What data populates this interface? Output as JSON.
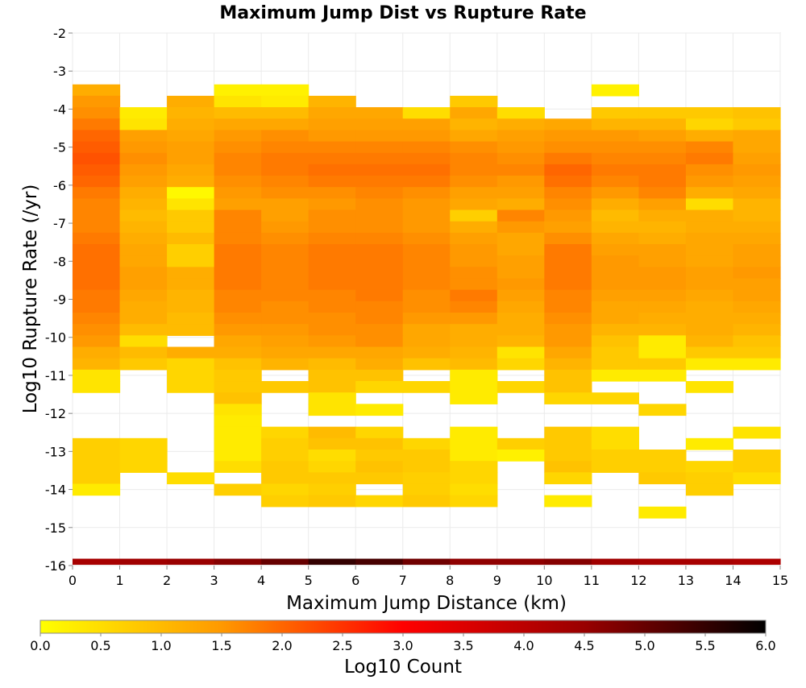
{
  "chart_data": {
    "type": "heatmap",
    "title": "Maximum Jump Dist vs Rupture Rate",
    "xlabel": "Maximum Jump Distance (km)",
    "ylabel": "Log10 Rupture Rate (/yr)",
    "xlim": [
      0,
      15
    ],
    "ylim": [
      -16,
      -2
    ],
    "x_ticks": [
      "0",
      "1",
      "2",
      "3",
      "4",
      "5",
      "6",
      "7",
      "8",
      "9",
      "10",
      "11",
      "12",
      "13",
      "14",
      "15"
    ],
    "y_ticks": [
      "-2",
      "-3",
      "-4",
      "-5",
      "-6",
      "-7",
      "-8",
      "-9",
      "-10",
      "-11",
      "-12",
      "-13",
      "-14",
      "-15",
      "-16"
    ],
    "grid": true,
    "bin_width_x": 1,
    "bin_height_y": 0.3,
    "colorbar": {
      "label": "Log10 Count",
      "range": [
        0,
        6
      ],
      "ticks": [
        "0.0",
        "0.5",
        "1.0",
        "1.5",
        "2.0",
        "2.5",
        "3.0",
        "3.5",
        "4.0",
        "4.5",
        "5.0",
        "5.5",
        "6.0"
      ],
      "colors": [
        "#ffff00",
        "#ff9900",
        "#ff0000",
        "#990000",
        "#000000"
      ]
    },
    "cell_note": "Rows listed top (y=-3.5) to bottom (y=-15.8) in 0.3 steps; columns x=0..14 (1 km bins). null = no data. Values are Log10 Count.",
    "y_top": -3.5,
    "cells": [
      [
        1.2,
        null,
        null,
        0.2,
        0.2,
        null,
        null,
        null,
        null,
        null,
        null,
        0.2,
        null,
        null,
        null
      ],
      [
        1.5,
        null,
        1.2,
        0.4,
        0.3,
        1.1,
        null,
        null,
        0.8,
        null,
        null,
        null,
        null,
        null,
        null
      ],
      [
        1.6,
        0.3,
        1.1,
        1.0,
        1.0,
        1.3,
        1.3,
        0.5,
        1.3,
        0.5,
        null,
        0.8,
        0.8,
        0.8,
        0.9
      ],
      [
        1.8,
        0.4,
        1.2,
        1.3,
        1.3,
        1.4,
        1.4,
        1.4,
        1.1,
        1.2,
        1.3,
        1.1,
        1.1,
        0.6,
        0.8
      ],
      [
        2.0,
        1.4,
        1.3,
        1.5,
        1.6,
        1.5,
        1.5,
        1.5,
        1.3,
        1.4,
        1.5,
        1.5,
        1.4,
        1.2,
        1.3
      ],
      [
        2.1,
        1.5,
        1.4,
        1.6,
        1.7,
        1.7,
        1.7,
        1.7,
        1.6,
        1.5,
        1.6,
        1.6,
        1.6,
        1.7,
        1.3
      ],
      [
        2.2,
        1.6,
        1.4,
        1.7,
        1.8,
        1.8,
        1.8,
        1.8,
        1.7,
        1.6,
        1.8,
        1.7,
        1.7,
        1.8,
        1.4
      ],
      [
        2.1,
        1.5,
        1.3,
        1.7,
        1.8,
        1.9,
        1.9,
        1.9,
        1.7,
        1.7,
        2.0,
        1.8,
        1.8,
        1.6,
        1.5
      ],
      [
        2.0,
        1.4,
        1.2,
        1.6,
        1.7,
        1.8,
        1.8,
        1.8,
        1.6,
        1.5,
        1.9,
        1.7,
        1.8,
        1.5,
        1.4
      ],
      [
        1.8,
        1.2,
        0.1,
        1.5,
        1.6,
        1.6,
        1.7,
        1.6,
        1.4,
        1.4,
        1.7,
        1.5,
        1.7,
        1.2,
        1.3
      ],
      [
        1.7,
        1.1,
        0.4,
        1.4,
        1.4,
        1.5,
        1.6,
        1.5,
        1.3,
        1.2,
        1.6,
        1.2,
        1.4,
        0.5,
        1.1
      ],
      [
        1.7,
        1.0,
        0.8,
        1.7,
        1.4,
        1.6,
        1.6,
        1.5,
        0.7,
        1.7,
        1.5,
        1.0,
        1.2,
        1.2,
        1.1
      ],
      [
        1.7,
        1.1,
        0.8,
        1.7,
        1.5,
        1.6,
        1.6,
        1.5,
        1.2,
        1.5,
        1.4,
        1.1,
        1.1,
        1.2,
        1.2
      ],
      [
        1.8,
        1.2,
        1.0,
        1.7,
        1.6,
        1.7,
        1.7,
        1.6,
        1.4,
        1.3,
        1.6,
        1.3,
        1.2,
        1.3,
        1.3
      ],
      [
        1.9,
        1.3,
        0.7,
        1.8,
        1.7,
        1.8,
        1.8,
        1.7,
        1.5,
        1.3,
        1.8,
        1.4,
        1.4,
        1.3,
        1.4
      ],
      [
        1.9,
        1.3,
        0.7,
        1.8,
        1.7,
        1.8,
        1.8,
        1.7,
        1.5,
        1.4,
        1.8,
        1.5,
        1.4,
        1.3,
        1.4
      ],
      [
        1.9,
        1.4,
        1.2,
        1.8,
        1.7,
        1.8,
        1.8,
        1.7,
        1.6,
        1.4,
        1.8,
        1.5,
        1.5,
        1.4,
        1.5
      ],
      [
        1.9,
        1.4,
        1.2,
        1.8,
        1.7,
        1.8,
        1.8,
        1.7,
        1.6,
        1.5,
        1.8,
        1.5,
        1.5,
        1.4,
        1.4
      ],
      [
        1.8,
        1.3,
        1.1,
        1.7,
        1.7,
        1.7,
        1.8,
        1.6,
        1.8,
        1.4,
        1.7,
        1.4,
        1.4,
        1.3,
        1.4
      ],
      [
        1.8,
        1.2,
        1.1,
        1.7,
        1.6,
        1.7,
        1.7,
        1.6,
        1.7,
        1.3,
        1.7,
        1.3,
        1.3,
        1.2,
        1.3
      ],
      [
        1.7,
        1.2,
        1.0,
        1.6,
        1.6,
        1.6,
        1.7,
        1.5,
        1.5,
        1.2,
        1.6,
        1.3,
        1.2,
        1.2,
        1.2
      ],
      [
        1.6,
        1.0,
        1.0,
        1.5,
        1.5,
        1.6,
        1.6,
        1.3,
        1.2,
        1.2,
        1.5,
        1.1,
        1.1,
        1.2,
        1.1
      ],
      [
        1.5,
        0.5,
        null,
        1.3,
        1.4,
        1.5,
        1.6,
        1.3,
        1.2,
        1.1,
        1.5,
        0.9,
        0.3,
        1.1,
        0.9
      ],
      [
        1.2,
        1.0,
        1.2,
        1.2,
        1.3,
        1.3,
        1.3,
        1.2,
        1.1,
        0.4,
        1.3,
        0.8,
        0.3,
        0.8,
        0.8
      ],
      [
        1.1,
        0.8,
        0.6,
        0.9,
        1.1,
        1.0,
        1.2,
        0.9,
        1.0,
        0.6,
        1.1,
        0.8,
        0.8,
        0.3,
        0.3
      ],
      [
        0.4,
        null,
        0.6,
        0.8,
        null,
        0.9,
        0.9,
        null,
        0.3,
        null,
        0.9,
        0.3,
        0.3,
        null,
        null
      ],
      [
        0.4,
        null,
        0.6,
        0.8,
        0.8,
        0.9,
        0.6,
        0.6,
        0.3,
        0.6,
        0.9,
        null,
        null,
        0.4,
        null
      ],
      [
        null,
        null,
        null,
        0.9,
        null,
        0.4,
        null,
        null,
        0.3,
        null,
        0.6,
        0.6,
        null,
        null,
        null
      ],
      [
        null,
        null,
        null,
        0.4,
        null,
        0.4,
        0.3,
        null,
        null,
        null,
        null,
        null,
        0.6,
        null,
        null
      ],
      [
        null,
        null,
        null,
        0.3,
        null,
        null,
        null,
        null,
        null,
        null,
        null,
        null,
        null,
        null,
        null
      ],
      [
        null,
        null,
        null,
        0.3,
        0.6,
        1.0,
        0.6,
        null,
        0.3,
        null,
        0.8,
        0.5,
        null,
        null,
        0.4
      ],
      [
        0.7,
        0.6,
        null,
        0.3,
        0.7,
        0.9,
        0.9,
        0.6,
        0.3,
        0.7,
        0.8,
        0.5,
        null,
        0.3,
        null
      ],
      [
        0.7,
        0.6,
        null,
        0.3,
        0.7,
        0.5,
        0.8,
        0.8,
        0.3,
        0.2,
        0.8,
        0.7,
        0.7,
        null,
        0.7
      ],
      [
        0.7,
        0.6,
        null,
        0.5,
        0.8,
        0.6,
        0.9,
        0.8,
        0.6,
        null,
        0.9,
        0.7,
        0.7,
        0.6,
        0.7
      ],
      [
        0.7,
        null,
        0.5,
        null,
        0.8,
        0.8,
        0.8,
        0.7,
        0.6,
        null,
        0.6,
        null,
        0.8,
        0.7,
        0.5
      ],
      [
        0.3,
        null,
        null,
        0.7,
        0.6,
        0.7,
        null,
        0.7,
        0.5,
        null,
        null,
        null,
        null,
        0.7,
        null
      ],
      [
        null,
        null,
        null,
        null,
        0.7,
        0.8,
        0.6,
        0.8,
        0.6,
        null,
        0.3,
        null,
        null,
        null,
        null
      ],
      [
        null,
        null,
        null,
        null,
        null,
        null,
        null,
        null,
        null,
        null,
        null,
        null,
        0.3,
        null,
        null
      ],
      [
        null,
        null,
        null,
        null,
        null,
        null,
        null,
        null,
        null,
        null,
        null,
        null,
        null,
        null,
        null
      ],
      [
        null,
        null,
        null,
        null,
        null,
        null,
        null,
        null,
        null,
        null,
        null,
        null,
        null,
        null,
        null
      ],
      [
        null,
        null,
        null,
        null,
        null,
        null,
        null,
        null,
        null,
        null,
        null,
        null,
        null,
        null,
        null
      ]
    ],
    "bottom_strip": {
      "y": -15.9,
      "values": [
        4.3,
        4.4,
        4.5,
        4.7,
        5.0,
        5.5,
        5.3,
        4.9,
        4.6,
        4.6,
        4.7,
        4.4,
        4.3,
        4.3,
        4.2
      ]
    }
  }
}
